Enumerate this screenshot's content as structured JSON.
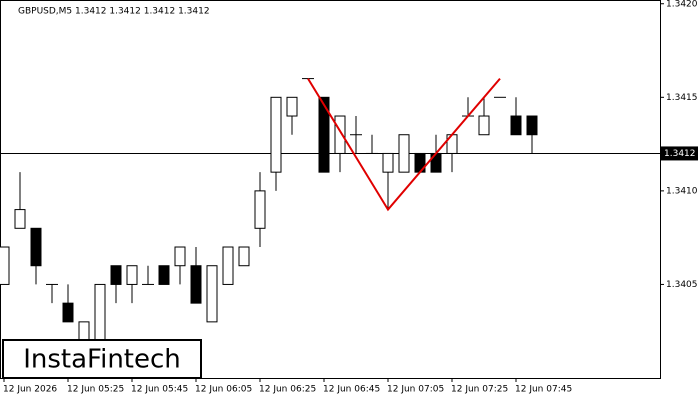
{
  "chart_data": {
    "type": "candlestick",
    "title": "GBPUSD,M5  1.3412 1.3412 1.3412 1.3412",
    "watermark": "InstaFintech",
    "categories": [
      "12 Jun 2026",
      null,
      null,
      null,
      "12 Jun 05:25",
      null,
      null,
      null,
      "12 Jun 05:45",
      null,
      null,
      null,
      "12 Jun 06:05",
      null,
      null,
      null,
      "12 Jun 06:25",
      null,
      null,
      null,
      "12 Jun 06:45",
      null,
      null,
      null,
      "12 Jun 07:05",
      null,
      null,
      null,
      "12 Jun 07:25",
      null,
      null,
      null,
      "12 Jun 07:45",
      null
    ],
    "open": [
      1.3405,
      1.3408,
      1.3408,
      1.3405,
      1.3404,
      1.3402,
      1.34004,
      1.3406,
      1.3405,
      1.3405,
      1.3406,
      1.3406,
      1.3406,
      1.3403,
      1.3405,
      1.3406,
      1.3408,
      1.3411,
      1.3414,
      1.3416,
      1.3415,
      1.3412,
      1.3413,
      1.3412,
      1.3411,
      1.3411,
      1.3412,
      1.3412,
      1.3412,
      1.3414,
      1.3413,
      1.3415,
      1.3414,
      1.3414
    ],
    "high": [
      1.3407,
      1.3411,
      1.3408,
      1.3405,
      1.3405,
      1.3403,
      1.3405,
      1.3406,
      1.3406,
      1.3406,
      1.3406,
      1.3407,
      1.3407,
      1.3406,
      1.3407,
      1.3407,
      1.3411,
      1.3415,
      1.3415,
      1.3416,
      1.3415,
      1.3414,
      1.3414,
      1.3413,
      1.3412,
      1.3413,
      1.3412,
      1.3413,
      1.3413,
      1.3415,
      1.3415,
      1.3415,
      1.3415,
      1.3414
    ],
    "low": [
      1.3405,
      1.3408,
      1.3405,
      1.3404,
      1.3403,
      1.3401,
      1.34,
      1.3404,
      1.3404,
      1.3405,
      1.3405,
      1.3405,
      1.3404,
      1.3403,
      1.3405,
      1.3406,
      1.3407,
      1.341,
      1.3413,
      1.3416,
      1.3411,
      1.3411,
      1.3412,
      1.3412,
      1.3409,
      1.3411,
      1.3411,
      1.3411,
      1.3411,
      1.3414,
      1.3413,
      1.3415,
      1.3413,
      1.3412
    ],
    "close": [
      1.3407,
      1.3409,
      1.3406,
      1.3405,
      1.3403,
      1.3403,
      1.3405,
      1.3405,
      1.3406,
      1.3405,
      1.3405,
      1.3407,
      1.3404,
      1.3406,
      1.3407,
      1.3407,
      1.341,
      1.3415,
      1.3415,
      1.3416,
      1.3411,
      1.3414,
      1.3413,
      1.3412,
      1.3412,
      1.3413,
      1.3411,
      1.3411,
      1.3413,
      1.3414,
      1.3414,
      1.3415,
      1.3413,
      1.3413
    ],
    "up_color": "#ffffff",
    "down_color": "#000000",
    "last_price": 1.3412,
    "pattern": {
      "color": "#e00000",
      "points": [
        19,
        24,
        31
      ],
      "values": [
        1.3416,
        1.3409,
        1.3416
      ]
    },
    "ylim": [
      1.34,
      1.34202
    ],
    "yticks": [
      {
        "value": 1.342,
        "label": "1.3420"
      },
      1.3415,
      {
        "value": 1.341,
        "label": "1.3410"
      },
      1.3405
    ]
  }
}
